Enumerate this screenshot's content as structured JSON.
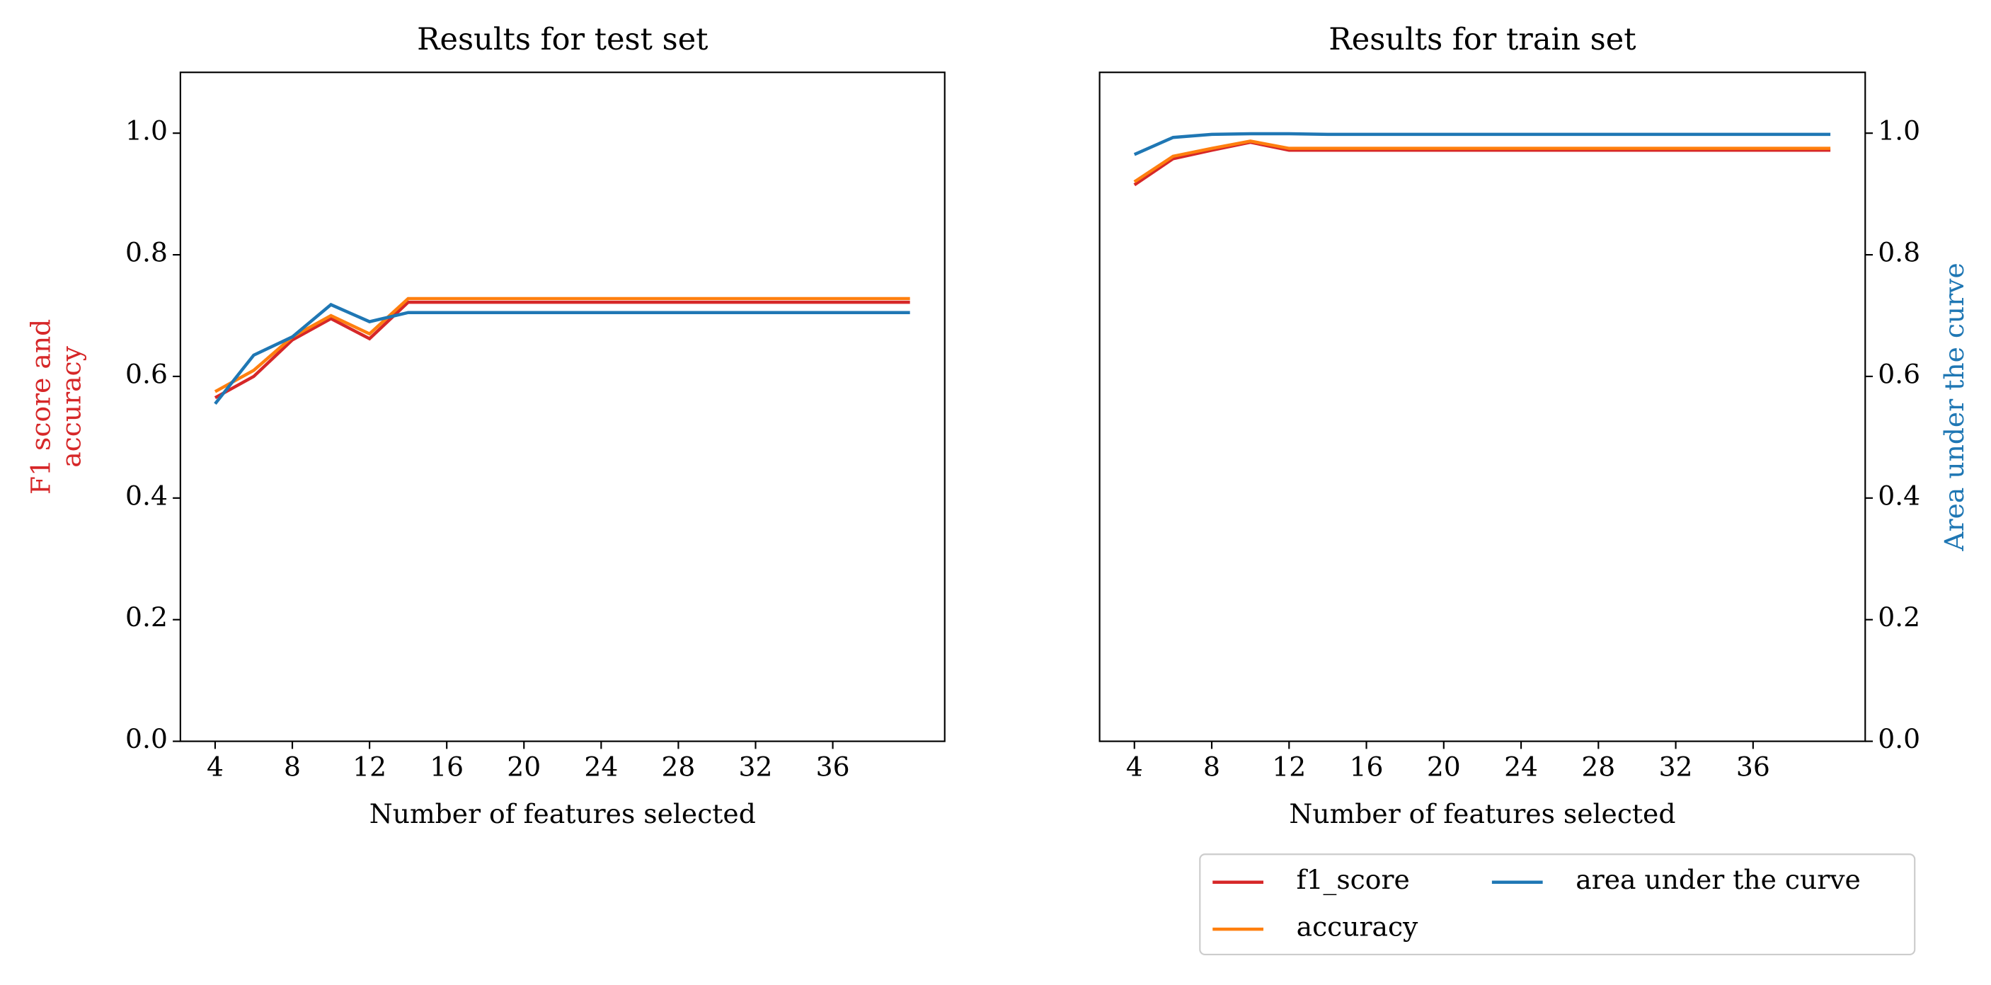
{
  "chart_data": [
    {
      "type": "line",
      "title": "Results for test set",
      "xlabel": "Number of features selected",
      "ylabel": [
        "F1 score and",
        "accuracy"
      ],
      "ylabel_color": "#d62728",
      "yaxis_side": "left",
      "x": [
        4,
        6,
        8,
        10,
        12,
        14,
        16,
        18,
        20,
        22,
        24,
        26,
        28,
        30,
        32,
        34,
        36,
        38,
        40
      ],
      "xlim": [
        2.2,
        41.8
      ],
      "xticks": [
        4,
        8,
        12,
        16,
        20,
        24,
        28,
        32,
        36
      ],
      "ylim": [
        0,
        1.1
      ],
      "yticks": [
        {
          "value": 0,
          "label": "0.0"
        },
        {
          "value": 0.2,
          "label": "0.2"
        },
        {
          "value": 0.4,
          "label": "0.4"
        },
        {
          "value": 0.6,
          "label": "0.6"
        },
        {
          "value": 0.8,
          "label": "0.8"
        },
        {
          "value": 1,
          "label": "1.0"
        }
      ],
      "series": [
        {
          "name": "f1_score",
          "color": "#d62728",
          "values": [
            0.565,
            0.6,
            0.66,
            0.695,
            0.662,
            0.722,
            0.722,
            0.722,
            0.722,
            0.722,
            0.722,
            0.722,
            0.722,
            0.722,
            0.722,
            0.722,
            0.722,
            0.722,
            0.722
          ]
        },
        {
          "name": "accuracy",
          "color": "#ff7f0e",
          "values": [
            0.575,
            0.61,
            0.665,
            0.7,
            0.67,
            0.728,
            0.728,
            0.728,
            0.728,
            0.728,
            0.728,
            0.728,
            0.728,
            0.728,
            0.728,
            0.728,
            0.728,
            0.728,
            0.728
          ]
        },
        {
          "name": "area under the curve",
          "color": "#1f77b4",
          "values": [
            0.555,
            0.635,
            0.665,
            0.718,
            0.69,
            0.705,
            0.705,
            0.705,
            0.705,
            0.705,
            0.705,
            0.705,
            0.705,
            0.705,
            0.705,
            0.705,
            0.705,
            0.705,
            0.705
          ]
        }
      ]
    },
    {
      "type": "line",
      "title": "Results for train set",
      "xlabel": "Number of features selected",
      "ylabel": [
        "Area under the curve"
      ],
      "ylabel_color": "#1f77b4",
      "yaxis_side": "right",
      "legend": "lower right",
      "x": [
        4,
        6,
        8,
        10,
        12,
        14,
        16,
        18,
        20,
        22,
        24,
        26,
        28,
        30,
        32,
        34,
        36,
        38,
        40
      ],
      "xlim": [
        2.2,
        41.8
      ],
      "xticks": [
        4,
        8,
        12,
        16,
        20,
        24,
        28,
        32,
        36
      ],
      "ylim": [
        0,
        1.1
      ],
      "yticks": [
        {
          "value": 0,
          "label": "0.0"
        },
        {
          "value": 0.2,
          "label": "0.2"
        },
        {
          "value": 0.4,
          "label": "0.4"
        },
        {
          "value": 0.6,
          "label": "0.6"
        },
        {
          "value": 0.8,
          "label": "0.8"
        },
        {
          "value": 1,
          "label": "1.0"
        }
      ],
      "series": [
        {
          "name": "f1_score",
          "color": "#d62728",
          "values": [
            0.915,
            0.958,
            0.972,
            0.985,
            0.972,
            0.972,
            0.972,
            0.972,
            0.972,
            0.972,
            0.972,
            0.972,
            0.972,
            0.972,
            0.972,
            0.972,
            0.972,
            0.972,
            0.972
          ]
        },
        {
          "name": "accuracy",
          "color": "#ff7f0e",
          "values": [
            0.92,
            0.962,
            0.975,
            0.987,
            0.975,
            0.975,
            0.975,
            0.975,
            0.975,
            0.975,
            0.975,
            0.975,
            0.975,
            0.975,
            0.975,
            0.975,
            0.975,
            0.975,
            0.975
          ]
        },
        {
          "name": "area under the curve",
          "color": "#1f77b4",
          "values": [
            0.965,
            0.993,
            0.998,
            0.999,
            0.999,
            0.998,
            0.998,
            0.998,
            0.998,
            0.998,
            0.998,
            0.998,
            0.998,
            0.998,
            0.998,
            0.998,
            0.998,
            0.998,
            0.998
          ]
        }
      ]
    }
  ]
}
